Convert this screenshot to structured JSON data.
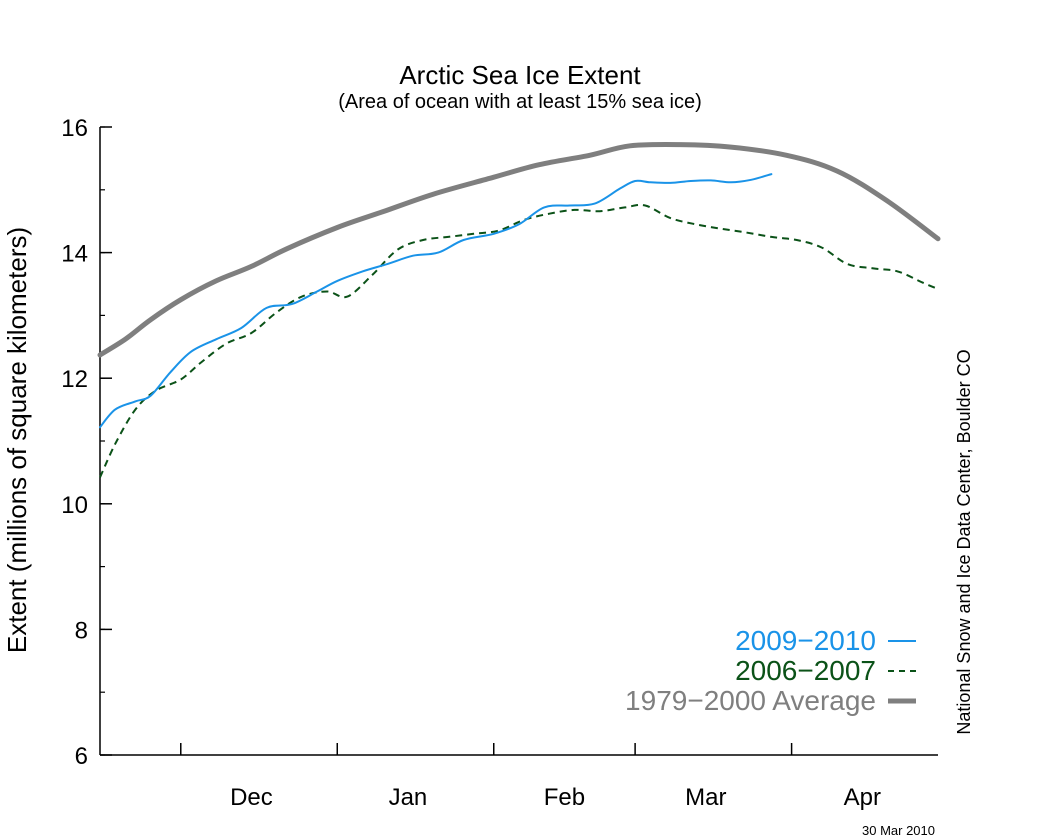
{
  "chart_data": {
    "type": "line",
    "title": "Arctic Sea Ice Extent",
    "subtitle": "(Area of ocean with at least 15% sea ice)",
    "ylabel": "Extent (millions of square kilometers)",
    "xlabel": "",
    "ylim": [
      6,
      16
    ],
    "xlim": [
      "2009-11-15",
      "2010-04-30"
    ],
    "y_ticks": [
      6,
      8,
      10,
      12,
      14,
      16
    ],
    "month_labels": [
      {
        "label": "Dec",
        "date": "2009-12-15"
      },
      {
        "label": "Jan",
        "date": "2010-01-15"
      },
      {
        "label": "Feb",
        "date": "2010-02-15"
      },
      {
        "label": "Mar",
        "date": "2010-03-15"
      },
      {
        "label": "Apr",
        "date": "2010-04-15"
      }
    ],
    "month_boundaries": [
      "2009-12-01",
      "2010-01-01",
      "2010-02-01",
      "2010-03-01",
      "2010-04-01"
    ],
    "grid": false,
    "legend_position": "bottom-right",
    "credit": "National Snow and Ice Data Center, Boulder CO",
    "date_stamp": "30 Mar 2010",
    "series": [
      {
        "name": "1979−2000 Average",
        "color": "#7f7f7f",
        "style": "solid-thick",
        "x": [
          "2009-11-15",
          "2009-11-20",
          "2009-11-25",
          "2009-12-01",
          "2009-12-08",
          "2009-12-15",
          "2009-12-22",
          "2010-01-01",
          "2010-01-10",
          "2010-01-20",
          "2010-02-01",
          "2010-02-10",
          "2010-02-20",
          "2010-02-28",
          "2010-03-10",
          "2010-03-20",
          "2010-03-31",
          "2010-04-10",
          "2010-04-20",
          "2010-04-30"
        ],
        "y": [
          12.37,
          12.62,
          12.93,
          13.25,
          13.55,
          13.78,
          14.06,
          14.4,
          14.65,
          14.93,
          15.2,
          15.4,
          15.55,
          15.7,
          15.72,
          15.68,
          15.55,
          15.3,
          14.82,
          14.22
        ]
      },
      {
        "name": "2009−2010",
        "color": "#1a93e8",
        "style": "solid",
        "x": [
          "2009-11-15",
          "2009-11-18",
          "2009-11-22",
          "2009-11-25",
          "2009-11-29",
          "2009-12-03",
          "2009-12-08",
          "2009-12-13",
          "2009-12-18",
          "2009-12-23",
          "2009-12-28",
          "2010-01-01",
          "2010-01-06",
          "2010-01-11",
          "2010-01-16",
          "2010-01-21",
          "2010-01-26",
          "2010-02-01",
          "2010-02-06",
          "2010-02-11",
          "2010-02-16",
          "2010-02-21",
          "2010-02-26",
          "2010-03-01",
          "2010-03-04",
          "2010-03-08",
          "2010-03-12",
          "2010-03-16",
          "2010-03-20",
          "2010-03-24",
          "2010-03-28"
        ],
        "y": [
          11.22,
          11.5,
          11.63,
          11.72,
          12.1,
          12.42,
          12.62,
          12.8,
          13.12,
          13.18,
          13.38,
          13.55,
          13.7,
          13.82,
          13.95,
          14.0,
          14.2,
          14.3,
          14.45,
          14.72,
          14.75,
          14.78,
          15.02,
          15.14,
          15.12,
          15.11,
          15.14,
          15.15,
          15.12,
          15.16,
          15.25
        ]
      },
      {
        "name": "2006−2007",
        "color": "#0b5218",
        "style": "dashed",
        "x": [
          "2009-11-15",
          "2009-11-18",
          "2009-11-22",
          "2009-11-26",
          "2009-12-01",
          "2009-12-05",
          "2009-12-10",
          "2009-12-15",
          "2009-12-20",
          "2009-12-25",
          "2009-12-30",
          "2010-01-03",
          "2010-01-08",
          "2010-01-13",
          "2010-01-18",
          "2010-01-23",
          "2010-01-28",
          "2010-02-02",
          "2010-02-07",
          "2010-02-12",
          "2010-02-17",
          "2010-02-22",
          "2010-02-27",
          "2010-03-03",
          "2010-03-08",
          "2010-03-13",
          "2010-03-18",
          "2010-03-23",
          "2010-03-28",
          "2010-04-02",
          "2010-04-07",
          "2010-04-12",
          "2010-04-17",
          "2010-04-22",
          "2010-04-27",
          "2010-04-30"
        ],
        "y": [
          10.42,
          10.95,
          11.5,
          11.8,
          11.98,
          12.25,
          12.55,
          12.72,
          13.05,
          13.3,
          13.38,
          13.3,
          13.65,
          14.05,
          14.2,
          14.25,
          14.3,
          14.35,
          14.52,
          14.62,
          14.68,
          14.66,
          14.72,
          14.75,
          14.55,
          14.45,
          14.38,
          14.32,
          14.25,
          14.2,
          14.08,
          13.82,
          13.75,
          13.7,
          13.52,
          13.42
        ]
      }
    ]
  }
}
